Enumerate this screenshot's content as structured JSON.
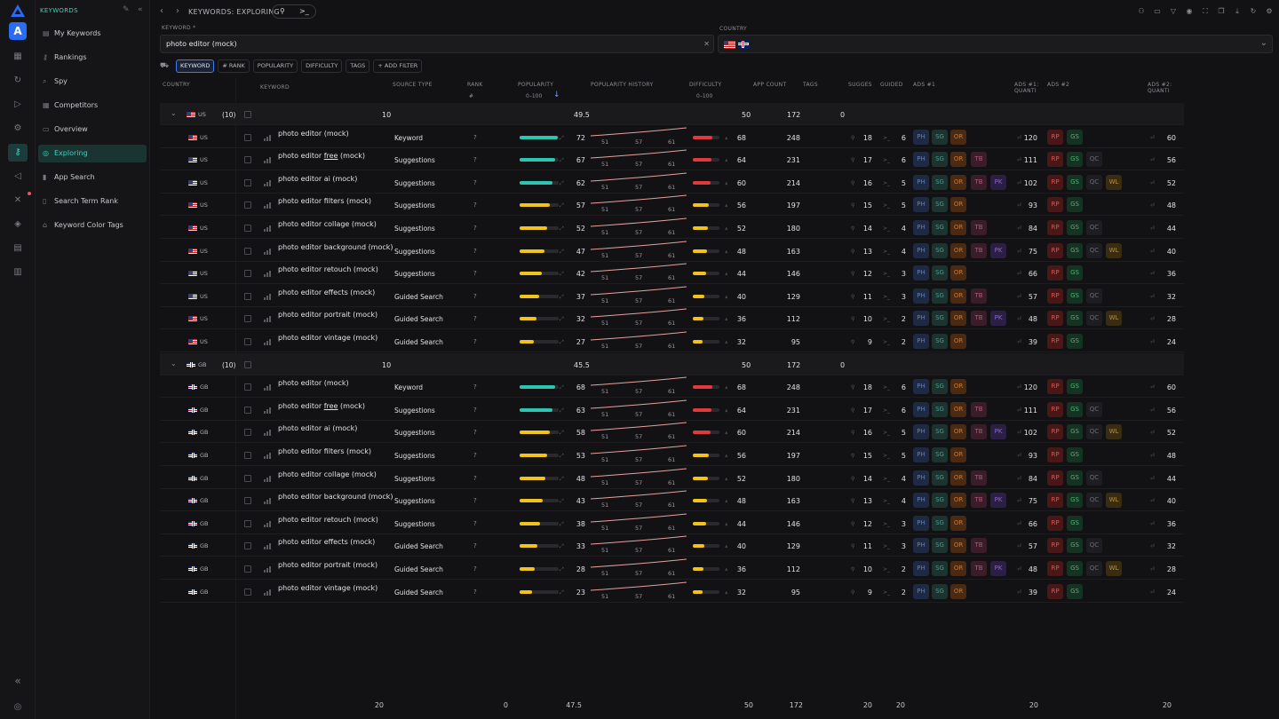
{
  "sidebar": {
    "section": "KEYWORDS",
    "items": [
      {
        "label": "My Keywords",
        "icon": "list-icon"
      },
      {
        "label": "Rankings",
        "icon": "key-icon"
      },
      {
        "label": "Spy",
        "icon": "search-icon"
      },
      {
        "label": "Competitors",
        "icon": "grid-icon"
      },
      {
        "label": "Overview",
        "icon": "window-icon"
      },
      {
        "label": "Exploring",
        "icon": "compass-icon",
        "active": true
      },
      {
        "label": "App Search",
        "icon": "bar-chart-icon"
      },
      {
        "label": "Search Term Rank",
        "icon": "document-icon"
      },
      {
        "label": "Keyword Color Tags",
        "icon": "tag-icon"
      }
    ]
  },
  "topbar": {
    "breadcrumb": "KEYWORDS: EXPLORING",
    "pill_right": ">_"
  },
  "filters": {
    "keyword_label": "KEYWORD *",
    "keyword_value": "photo editor (mock)",
    "country_label": "COUNTRY",
    "chips": [
      "KEYWORD",
      "# RANK",
      "POPULARITY",
      "DIFFICULTY",
      "TAGS",
      "+ ADD FILTER"
    ]
  },
  "columns": {
    "country": "COUNTRY",
    "keyword": "KEYWORD",
    "source": "SOURCE TYPE",
    "rank": "RANK",
    "rank_sub": "#",
    "popularity": "POPULARITY",
    "pop_sub": "0–100",
    "history": "POPULARITY HISTORY",
    "difficulty": "DIFFICULTY",
    "diff_sub": "0–100",
    "app_count": "APP COUNT",
    "tags": "TAGS",
    "sugges": "SUGGES",
    "guided": "GUIDED",
    "ads1": "ADS #1",
    "ads1q": "ADS #1: QUANTI",
    "ads2": "ADS #2",
    "ads2q": "ADS #2: QUANTI"
  },
  "groups": [
    {
      "country": "US",
      "count": "(10)",
      "kw_count": "10",
      "pop": "49.5",
      "diff": "50",
      "app": "172",
      "tags": "0",
      "rows": [
        {
          "kw": "photo editor (mock)",
          "src": "Keyword",
          "pop": 72,
          "diff": 68,
          "app": 248,
          "sug": 18,
          "gd": 6,
          "a1": [
            "PH",
            "SG",
            "OR"
          ],
          "a1q": 120,
          "a2": [
            "RP",
            "GS"
          ],
          "a2q": 60
        },
        {
          "kw": "photo editor free (mock)",
          "src": "Suggestions",
          "pop": 67,
          "diff": 64,
          "app": 231,
          "sug": 17,
          "gd": 6,
          "a1": [
            "PH",
            "SG",
            "OR",
            "TB"
          ],
          "a1q": 111,
          "a2": [
            "RP",
            "GS",
            "QC"
          ],
          "a2q": 56
        },
        {
          "kw": "photo editor ai (mock)",
          "src": "Suggestions",
          "pop": 62,
          "diff": 60,
          "app": 214,
          "sug": 16,
          "gd": 5,
          "a1": [
            "PH",
            "SG",
            "OR",
            "TB",
            "PK"
          ],
          "a1q": 102,
          "a2": [
            "RP",
            "GS",
            "QC",
            "WL"
          ],
          "a2q": 52
        },
        {
          "kw": "photo editor filters (mock)",
          "src": "Suggestions",
          "pop": 57,
          "diff": 56,
          "app": 197,
          "sug": 15,
          "gd": 5,
          "a1": [
            "PH",
            "SG",
            "OR"
          ],
          "a1q": 93,
          "a2": [
            "RP",
            "GS"
          ],
          "a2q": 48
        },
        {
          "kw": "photo editor collage (mock)",
          "src": "Suggestions",
          "pop": 52,
          "diff": 52,
          "app": 180,
          "sug": 14,
          "gd": 4,
          "a1": [
            "PH",
            "SG",
            "OR",
            "TB"
          ],
          "a1q": 84,
          "a2": [
            "RP",
            "GS",
            "QC"
          ],
          "a2q": 44
        },
        {
          "kw": "photo editor background (mock)",
          "src": "Suggestions",
          "pop": 47,
          "diff": 48,
          "app": 163,
          "sug": 13,
          "gd": 4,
          "a1": [
            "PH",
            "SG",
            "OR",
            "TB",
            "PK"
          ],
          "a1q": 75,
          "a2": [
            "RP",
            "GS",
            "QC",
            "WL"
          ],
          "a2q": 40
        },
        {
          "kw": "photo editor retouch (mock)",
          "src": "Suggestions",
          "pop": 42,
          "diff": 44,
          "app": 146,
          "sug": 12,
          "gd": 3,
          "a1": [
            "PH",
            "SG",
            "OR"
          ],
          "a1q": 66,
          "a2": [
            "RP",
            "GS"
          ],
          "a2q": 36
        },
        {
          "kw": "photo editor effects (mock)",
          "src": "Guided Search",
          "pop": 37,
          "diff": 40,
          "app": 129,
          "sug": 11,
          "gd": 3,
          "a1": [
            "PH",
            "SG",
            "OR",
            "TB"
          ],
          "a1q": 57,
          "a2": [
            "RP",
            "GS",
            "QC"
          ],
          "a2q": 32
        },
        {
          "kw": "photo editor portrait (mock)",
          "src": "Guided Search",
          "pop": 32,
          "diff": 36,
          "app": 112,
          "sug": 10,
          "gd": 2,
          "a1": [
            "PH",
            "SG",
            "OR",
            "TB",
            "PK"
          ],
          "a1q": 48,
          "a2": [
            "RP",
            "GS",
            "QC",
            "WL"
          ],
          "a2q": 28
        },
        {
          "kw": "photo editor vintage (mock)",
          "src": "Guided Search",
          "pop": 27,
          "diff": 32,
          "app": 95,
          "sug": 9,
          "gd": 2,
          "a1": [
            "PH",
            "SG",
            "OR"
          ],
          "a1q": 39,
          "a2": [
            "RP",
            "GS"
          ],
          "a2q": 24
        }
      ]
    },
    {
      "country": "GB",
      "count": "(10)",
      "kw_count": "10",
      "pop": "45.5",
      "diff": "50",
      "app": "172",
      "tags": "0",
      "rows": [
        {
          "kw": "photo editor (mock)",
          "src": "Keyword",
          "pop": 68,
          "diff": 68,
          "app": 248,
          "sug": 18,
          "gd": 6,
          "a1": [
            "PH",
            "SG",
            "OR"
          ],
          "a1q": 120,
          "a2": [
            "RP",
            "GS"
          ],
          "a2q": 60
        },
        {
          "kw": "photo editor free (mock)",
          "src": "Suggestions",
          "pop": 63,
          "diff": 64,
          "app": 231,
          "sug": 17,
          "gd": 6,
          "a1": [
            "PH",
            "SG",
            "OR",
            "TB"
          ],
          "a1q": 111,
          "a2": [
            "RP",
            "GS",
            "QC"
          ],
          "a2q": 56
        },
        {
          "kw": "photo editor ai (mock)",
          "src": "Suggestions",
          "pop": 58,
          "diff": 60,
          "app": 214,
          "sug": 16,
          "gd": 5,
          "a1": [
            "PH",
            "SG",
            "OR",
            "TB",
            "PK"
          ],
          "a1q": 102,
          "a2": [
            "RP",
            "GS",
            "QC",
            "WL"
          ],
          "a2q": 52
        },
        {
          "kw": "photo editor filters (mock)",
          "src": "Suggestions",
          "pop": 53,
          "diff": 56,
          "app": 197,
          "sug": 15,
          "gd": 5,
          "a1": [
            "PH",
            "SG",
            "OR"
          ],
          "a1q": 93,
          "a2": [
            "RP",
            "GS"
          ],
          "a2q": 48
        },
        {
          "kw": "photo editor collage (mock)",
          "src": "Suggestions",
          "pop": 48,
          "diff": 52,
          "app": 180,
          "sug": 14,
          "gd": 4,
          "a1": [
            "PH",
            "SG",
            "OR",
            "TB"
          ],
          "a1q": 84,
          "a2": [
            "RP",
            "GS",
            "QC"
          ],
          "a2q": 44
        },
        {
          "kw": "photo editor background (mock)",
          "src": "Suggestions",
          "pop": 43,
          "diff": 48,
          "app": 163,
          "sug": 13,
          "gd": 4,
          "a1": [
            "PH",
            "SG",
            "OR",
            "TB",
            "PK"
          ],
          "a1q": 75,
          "a2": [
            "RP",
            "GS",
            "QC",
            "WL"
          ],
          "a2q": 40
        },
        {
          "kw": "photo editor retouch (mock)",
          "src": "Suggestions",
          "pop": 38,
          "diff": 44,
          "app": 146,
          "sug": 12,
          "gd": 3,
          "a1": [
            "PH",
            "SG",
            "OR"
          ],
          "a1q": 66,
          "a2": [
            "RP",
            "GS"
          ],
          "a2q": 36
        },
        {
          "kw": "photo editor effects (mock)",
          "src": "Guided Search",
          "pop": 33,
          "diff": 40,
          "app": 129,
          "sug": 11,
          "gd": 3,
          "a1": [
            "PH",
            "SG",
            "OR",
            "TB"
          ],
          "a1q": 57,
          "a2": [
            "RP",
            "GS",
            "QC"
          ],
          "a2q": 32
        },
        {
          "kw": "photo editor portrait (mock)",
          "src": "Guided Search",
          "pop": 28,
          "diff": 36,
          "app": 112,
          "sug": 10,
          "gd": 2,
          "a1": [
            "PH",
            "SG",
            "OR",
            "TB",
            "PK"
          ],
          "a1q": 48,
          "a2": [
            "RP",
            "GS",
            "QC",
            "WL"
          ],
          "a2q": 28
        },
        {
          "kw": "photo editor vintage (mock)",
          "src": "Guided Search",
          "pop": 23,
          "diff": 32,
          "app": 95,
          "sug": 9,
          "gd": 2,
          "a1": [
            "PH",
            "SG",
            "OR"
          ],
          "a1q": 39,
          "a2": [
            "RP",
            "GS"
          ],
          "a2q": 24
        }
      ]
    }
  ],
  "history_labels": [
    "51",
    "57",
    "61"
  ],
  "rank_placeholder": "?",
  "footer": {
    "keywords": "20",
    "rank": "0",
    "pop": "47.5",
    "diff": "50",
    "app": "172",
    "sug": "20",
    "gd": "20",
    "a1q": "20",
    "a2q": "20"
  },
  "colors": {
    "accent": "#38d3c0",
    "pop_high": "#2ec4b2",
    "pop_mid": "#f2c318",
    "diff_high": "#e0393e",
    "diff_mid": "#f2c318"
  }
}
